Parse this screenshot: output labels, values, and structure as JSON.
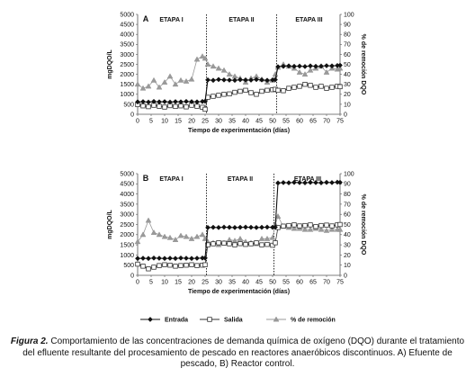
{
  "chart_data": [
    {
      "type": "line",
      "panel_label": "A",
      "xlabel": "Tiempo de experimentación (días)",
      "ylabel": "mgDQO/L",
      "y2label": "% de remoción DQO",
      "xlim": [
        0,
        75
      ],
      "ylim": [
        0,
        5000
      ],
      "y2lim": [
        0,
        100
      ],
      "x_ticks": [
        0,
        5,
        10,
        15,
        20,
        25,
        30,
        35,
        40,
        45,
        50,
        55,
        60,
        65,
        70,
        75
      ],
      "y_ticks": [
        0,
        500,
        1000,
        1500,
        2000,
        2500,
        3000,
        3500,
        4000,
        4500,
        5000
      ],
      "y2_ticks": [
        0,
        10,
        20,
        30,
        40,
        50,
        60,
        70,
        80,
        90,
        100
      ],
      "stage_dividers": [
        25.5,
        51.5
      ],
      "stages": [
        {
          "label": "ETAPA I",
          "x": 12.5
        },
        {
          "label": "ETAPA II",
          "x": 38.5
        },
        {
          "label": "ETAPA III",
          "x": 63.5
        }
      ],
      "series": [
        {
          "name": "Entrada",
          "axis": "left",
          "marker": "diamond",
          "x": [
            0,
            2,
            4,
            6,
            8,
            10,
            12,
            14,
            16,
            18,
            20,
            22,
            24,
            25,
            26,
            28,
            30,
            32,
            34,
            36,
            38,
            40,
            42,
            44,
            46,
            48,
            50,
            51,
            52,
            54,
            56,
            58,
            60,
            62,
            64,
            66,
            68,
            70,
            72,
            74,
            75
          ],
          "y": [
            620,
            630,
            610,
            640,
            620,
            630,
            610,
            630,
            620,
            640,
            630,
            620,
            640,
            650,
            1720,
            1700,
            1740,
            1720,
            1710,
            1700,
            1730,
            1720,
            1710,
            1740,
            1720,
            1700,
            1720,
            1730,
            2380,
            2400,
            2420,
            2400,
            2410,
            2390,
            2420,
            2400,
            2410,
            2430,
            2420,
            2440,
            2450
          ]
        },
        {
          "name": "Salida",
          "axis": "left",
          "marker": "square-open",
          "x": [
            0,
            2,
            4,
            6,
            8,
            10,
            12,
            14,
            16,
            18,
            20,
            22,
            24,
            25,
            26,
            28,
            30,
            32,
            34,
            36,
            38,
            40,
            42,
            44,
            46,
            48,
            50,
            51,
            52,
            54,
            56,
            58,
            60,
            62,
            64,
            66,
            68,
            70,
            72,
            74,
            75
          ],
          "y": [
            480,
            420,
            380,
            450,
            400,
            360,
            430,
            390,
            420,
            370,
            450,
            400,
            350,
            250,
            850,
            900,
            950,
            1000,
            1020,
            1100,
            1150,
            1200,
            1080,
            1000,
            1150,
            1200,
            1230,
            1250,
            1200,
            1180,
            1300,
            1350,
            1400,
            1500,
            1450,
            1350,
            1400,
            1300,
            1350,
            1400,
            1380
          ]
        },
        {
          "name": "% de remoción",
          "axis": "right",
          "marker": "triangle",
          "x": [
            0,
            2,
            4,
            6,
            8,
            10,
            12,
            14,
            16,
            18,
            20,
            22,
            24,
            25,
            26,
            28,
            30,
            32,
            34,
            36,
            38,
            40,
            42,
            44,
            46,
            48,
            50,
            51,
            52,
            54,
            56,
            58,
            60,
            62,
            64,
            66,
            68,
            70,
            72,
            74,
            75
          ],
          "y": [
            30,
            26,
            28,
            34,
            27,
            32,
            38,
            30,
            34,
            33,
            35,
            55,
            58,
            56,
            50,
            48,
            46,
            44,
            40,
            38,
            36,
            32,
            36,
            38,
            35,
            32,
            34,
            40,
            47,
            50,
            48,
            46,
            42,
            40,
            44,
            46,
            48,
            42,
            46,
            45,
            46
          ]
        }
      ]
    },
    {
      "type": "line",
      "panel_label": "B",
      "xlabel": "Tiempo de experimentación (días)",
      "ylabel": "mgDQO/L",
      "y2label": "% de remoción DQO",
      "xlim": [
        0,
        75
      ],
      "ylim": [
        0,
        5000
      ],
      "y2lim": [
        0,
        100
      ],
      "x_ticks": [
        0,
        5,
        10,
        15,
        20,
        25,
        30,
        35,
        40,
        45,
        50,
        55,
        60,
        65,
        70,
        75
      ],
      "y_ticks": [
        0,
        500,
        1000,
        1500,
        2000,
        2500,
        3000,
        3500,
        4000,
        4500,
        5000
      ],
      "y2_ticks": [
        0,
        10,
        20,
        30,
        40,
        50,
        60,
        70,
        80,
        90,
        100
      ],
      "stage_dividers": [
        25.5,
        50.5
      ],
      "stages": [
        {
          "label": "ETAPA I",
          "x": 12.5
        },
        {
          "label": "ETAPA II",
          "x": 38
        },
        {
          "label": "ETAPA III",
          "x": 63
        }
      ],
      "series": [
        {
          "name": "Entrada",
          "axis": "left",
          "marker": "diamond",
          "x": [
            0,
            2,
            4,
            6,
            8,
            10,
            12,
            14,
            16,
            18,
            20,
            22,
            24,
            25,
            26,
            28,
            30,
            32,
            34,
            36,
            38,
            40,
            42,
            44,
            46,
            48,
            50,
            51,
            52,
            54,
            56,
            58,
            60,
            62,
            64,
            66,
            68,
            70,
            72,
            74,
            75
          ],
          "y": [
            830,
            840,
            830,
            850,
            840,
            830,
            840,
            830,
            850,
            840,
            830,
            840,
            850,
            850,
            2350,
            2360,
            2350,
            2370,
            2360,
            2350,
            2360,
            2370,
            2360,
            2350,
            2360,
            2370,
            2360,
            2370,
            4540,
            4560,
            4550,
            4570,
            4560,
            4550,
            4570,
            4560,
            4550,
            4570,
            4560,
            4580,
            4570
          ]
        },
        {
          "name": "Salida",
          "axis": "left",
          "marker": "square-open",
          "x": [
            0,
            2,
            4,
            6,
            8,
            10,
            12,
            14,
            16,
            18,
            20,
            22,
            24,
            25,
            26,
            28,
            30,
            32,
            34,
            36,
            38,
            40,
            42,
            44,
            46,
            48,
            50,
            51,
            52,
            54,
            56,
            58,
            60,
            62,
            64,
            66,
            68,
            70,
            72,
            74,
            75
          ],
          "y": [
            550,
            450,
            320,
            400,
            480,
            520,
            500,
            450,
            480,
            500,
            520,
            480,
            500,
            520,
            1500,
            1550,
            1600,
            1580,
            1550,
            1500,
            1560,
            1520,
            1550,
            1600,
            1500,
            1520,
            1480,
            1600,
            2350,
            2420,
            2450,
            2480,
            2430,
            2450,
            2480,
            2400,
            2450,
            2470,
            2430,
            2480,
            2500
          ]
        },
        {
          "name": "% de remoción",
          "axis": "right",
          "marker": "triangle",
          "x": [
            0,
            2,
            4,
            6,
            8,
            10,
            12,
            14,
            16,
            18,
            20,
            22,
            24,
            25,
            26,
            28,
            30,
            32,
            34,
            36,
            38,
            40,
            42,
            44,
            46,
            48,
            50,
            51,
            52,
            54,
            56,
            58,
            60,
            62,
            64,
            66,
            68,
            70,
            72,
            74,
            75
          ],
          "y": [
            33,
            40,
            54,
            42,
            40,
            38,
            37,
            35,
            39,
            38,
            36,
            38,
            40,
            36,
            33,
            32,
            30,
            32,
            35,
            34,
            36,
            33,
            32,
            31,
            36,
            36,
            37,
            50,
            58,
            48,
            47,
            46,
            46,
            45,
            45,
            46,
            45,
            44,
            45,
            45,
            45
          ]
        }
      ]
    }
  ],
  "legend": {
    "items": [
      {
        "label": "Entrada",
        "marker": "diamond"
      },
      {
        "label": "Salida",
        "marker": "square-open"
      },
      {
        "label": "% de remoción",
        "marker": "triangle"
      }
    ]
  },
  "caption": {
    "lead": "Figura 2.",
    "text": " Comportamiento de las concentraciones de demanda química de oxígeno (DQO) durante el tratamiento del efluente resultante del procesamiento de pescado en reactores anaeróbicos discontinuos. A) Efuente de pescado, B) Reactor control."
  },
  "colors": {
    "entrada": "#111111",
    "salida": "#333333",
    "remocion": "#9a9a9a",
    "axis": "#555555"
  }
}
